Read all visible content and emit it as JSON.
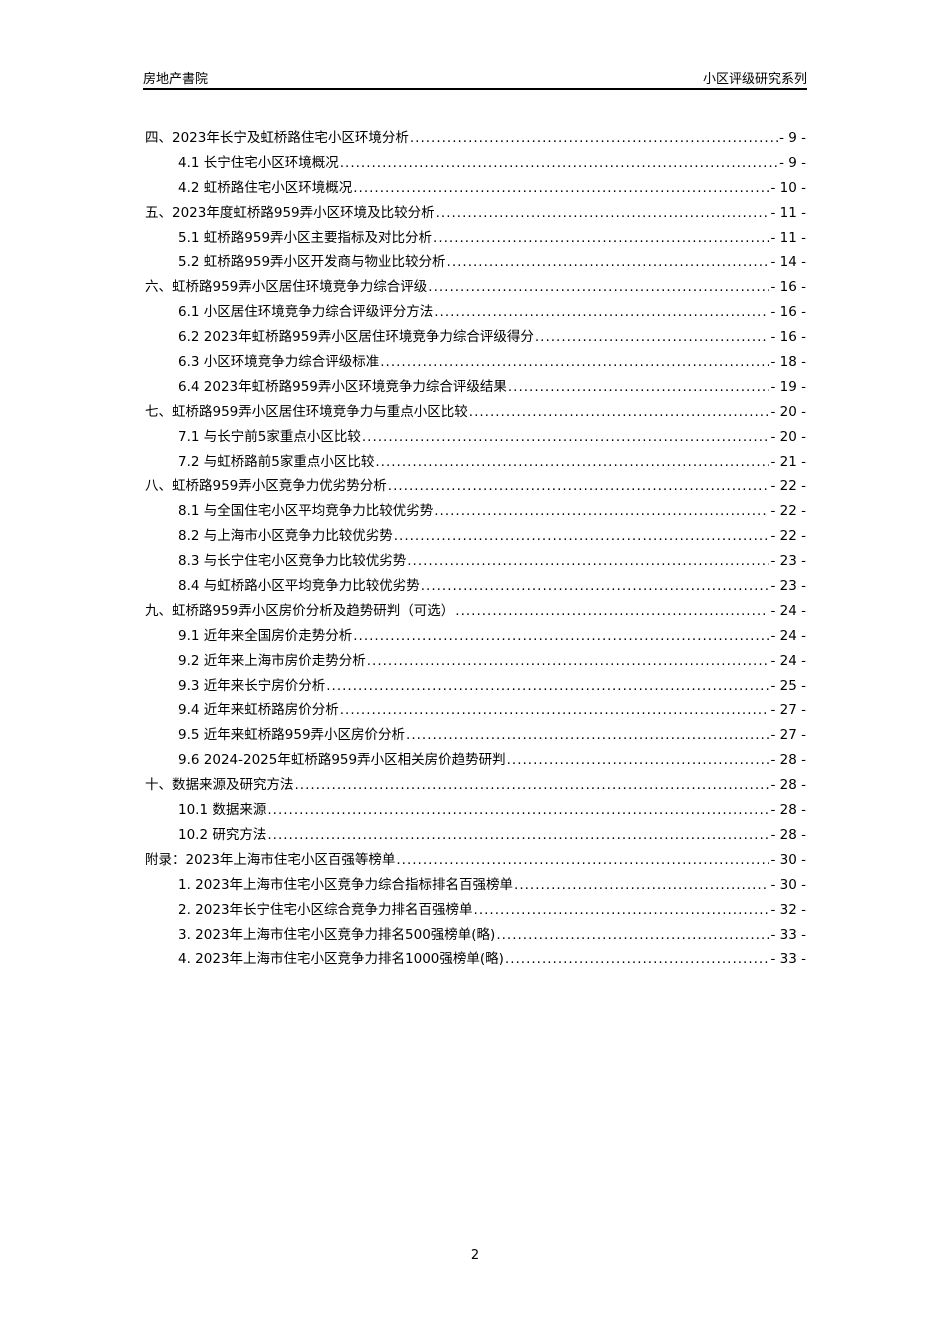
{
  "header": {
    "left": "房地产書院",
    "right": "小区评级研究系列"
  },
  "toc": [
    {
      "level": 1,
      "title": "四、2023年长宁及虹桥路住宅小区环境分析",
      "page": "- 9 -"
    },
    {
      "level": 2,
      "title": "4.1 长宁住宅小区环境概况",
      "page": "- 9 -"
    },
    {
      "level": 2,
      "title": "4.2 虹桥路住宅小区环境概况",
      "page": "- 10 -"
    },
    {
      "level": 1,
      "title": "五、2023年度虹桥路959弄小区环境及比较分析",
      "page": "- 11 -"
    },
    {
      "level": 2,
      "title": "5.1 虹桥路959弄小区主要指标及对比分析",
      "page": "- 11 -"
    },
    {
      "level": 2,
      "title": "5.2 虹桥路959弄小区开发商与物业比较分析",
      "page": "- 14 -"
    },
    {
      "level": 1,
      "title": "六、虹桥路959弄小区居住环境竞争力综合评级",
      "page": "- 16 -"
    },
    {
      "level": 2,
      "title": "6.1 小区居住环境竞争力综合评级评分方法",
      "page": "- 16 -"
    },
    {
      "level": 2,
      "title": "6.2 2023年虹桥路959弄小区居住环境竞争力综合评级得分",
      "page": "- 16 -"
    },
    {
      "level": 2,
      "title": "6.3 小区环境竞争力综合评级标准",
      "page": "- 18 -"
    },
    {
      "level": 2,
      "title": "6.4 2023年虹桥路959弄小区环境竞争力综合评级结果",
      "page": "- 19 -"
    },
    {
      "level": 1,
      "title": "七、虹桥路959弄小区居住环境竞争力与重点小区比较",
      "page": "- 20 -"
    },
    {
      "level": 2,
      "title": "7.1 与长宁前5家重点小区比较",
      "page": "- 20 -"
    },
    {
      "level": 2,
      "title": "7.2 与虹桥路前5家重点小区比较",
      "page": "- 21 -"
    },
    {
      "level": 1,
      "title": "八、虹桥路959弄小区竞争力优劣势分析",
      "page": "- 22 -"
    },
    {
      "level": 2,
      "title": "8.1 与全国住宅小区平均竞争力比较优劣势",
      "page": "- 22 -"
    },
    {
      "level": 2,
      "title": "8.2 与上海市小区竞争力比较优劣势",
      "page": "- 22 -"
    },
    {
      "level": 2,
      "title": "8.3 与长宁住宅小区竞争力比较优劣势",
      "page": "- 23 -"
    },
    {
      "level": 2,
      "title": "8.4 与虹桥路小区平均竞争力比较优劣势",
      "page": "- 23 -"
    },
    {
      "level": 1,
      "title": "九、虹桥路959弄小区房价分析及趋势研判（可选）",
      "page": "- 24 -"
    },
    {
      "level": 2,
      "title": "9.1 近年来全国房价走势分析",
      "page": "- 24 -"
    },
    {
      "level": 2,
      "title": "9.2 近年来上海市房价走势分析",
      "page": "- 24 -"
    },
    {
      "level": 2,
      "title": "9.3 近年来长宁房价分析",
      "page": "- 25 -"
    },
    {
      "level": 2,
      "title": "9.4 近年来虹桥路房价分析",
      "page": "- 27 -"
    },
    {
      "level": 2,
      "title": "9.5 近年来虹桥路959弄小区房价分析",
      "page": "- 27 -"
    },
    {
      "level": 2,
      "title": "9.6 2024-2025年虹桥路959弄小区相关房价趋势研判",
      "page": "- 28 -"
    },
    {
      "level": 1,
      "title": "十、数据来源及研究方法",
      "page": "- 28 -"
    },
    {
      "level": 2,
      "title": "10.1 数据来源",
      "page": "- 28 -"
    },
    {
      "level": 2,
      "title": "10.2 研究方法",
      "page": "- 28 -"
    },
    {
      "level": 1,
      "title": "附录：2023年上海市住宅小区百强等榜单",
      "page": "- 30 -"
    },
    {
      "level": 2,
      "title": "1. 2023年上海市住宅小区竞争力综合指标排名百强榜单",
      "page": "- 30 -"
    },
    {
      "level": 2,
      "title": "2. 2023年长宁住宅小区综合竞争力排名百强榜单",
      "page": "- 32 -"
    },
    {
      "level": 2,
      "title": "3. 2023年上海市住宅小区竞争力排名500强榜单(略)",
      "page": "- 33 -"
    },
    {
      "level": 2,
      "title": "4. 2023年上海市住宅小区竞争力排名1000强榜单(略)",
      "page": "- 33 -"
    }
  ],
  "footer": {
    "page_number": "2"
  }
}
